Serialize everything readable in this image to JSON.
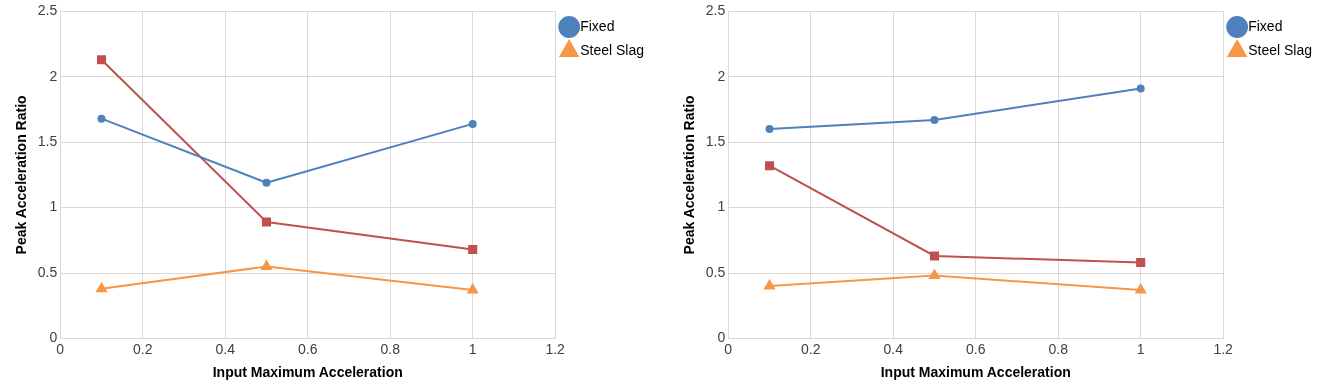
{
  "chart_data": [
    {
      "type": "line",
      "xlabel": "Input Maximum Acceleration",
      "ylabel": "Peak Acceleration Ratio",
      "x": [
        0.1,
        0.5,
        1
      ],
      "xlim": [
        0,
        1.2
      ],
      "xticks": [
        0,
        0.2,
        0.4,
        0.6,
        0.8,
        1,
        1.2
      ],
      "ylim": [
        0,
        2.5
      ],
      "yticks": [
        0,
        0.5,
        1,
        1.5,
        2,
        2.5
      ],
      "grid": true,
      "legend": "top right",
      "series": [
        {
          "name": "Fixed",
          "color": "#4f81bd",
          "marker": "circle",
          "values": [
            1.68,
            1.19,
            1.64
          ]
        },
        {
          "color": "#c0504d",
          "marker": "square",
          "values": [
            2.13,
            0.89,
            0.68
          ]
        },
        {
          "name": "Steel Slag",
          "color": "#f79646",
          "marker": "triangle",
          "values": [
            0.38,
            0.55,
            0.37
          ]
        }
      ]
    },
    {
      "type": "line",
      "xlabel": "Input Maximum Acceleration",
      "ylabel": "Peak Acceleration Ratio",
      "x": [
        0.1,
        0.5,
        1
      ],
      "xlim": [
        0,
        1.2
      ],
      "xticks": [
        0,
        0.2,
        0.4,
        0.6,
        0.8,
        1,
        1.2
      ],
      "ylim": [
        0,
        2.5
      ],
      "yticks": [
        0,
        0.5,
        1,
        1.5,
        2,
        2.5
      ],
      "grid": true,
      "legend": "top right",
      "series": [
        {
          "name": "Fixed",
          "color": "#4f81bd",
          "marker": "circle",
          "values": [
            1.6,
            1.67,
            1.91
          ]
        },
        {
          "color": "#c0504d",
          "marker": "square",
          "values": [
            1.32,
            0.63,
            0.58
          ]
        },
        {
          "name": "Steel Slag",
          "color": "#f79646",
          "marker": "triangle",
          "values": [
            0.4,
            0.48,
            0.37
          ]
        }
      ]
    }
  ]
}
